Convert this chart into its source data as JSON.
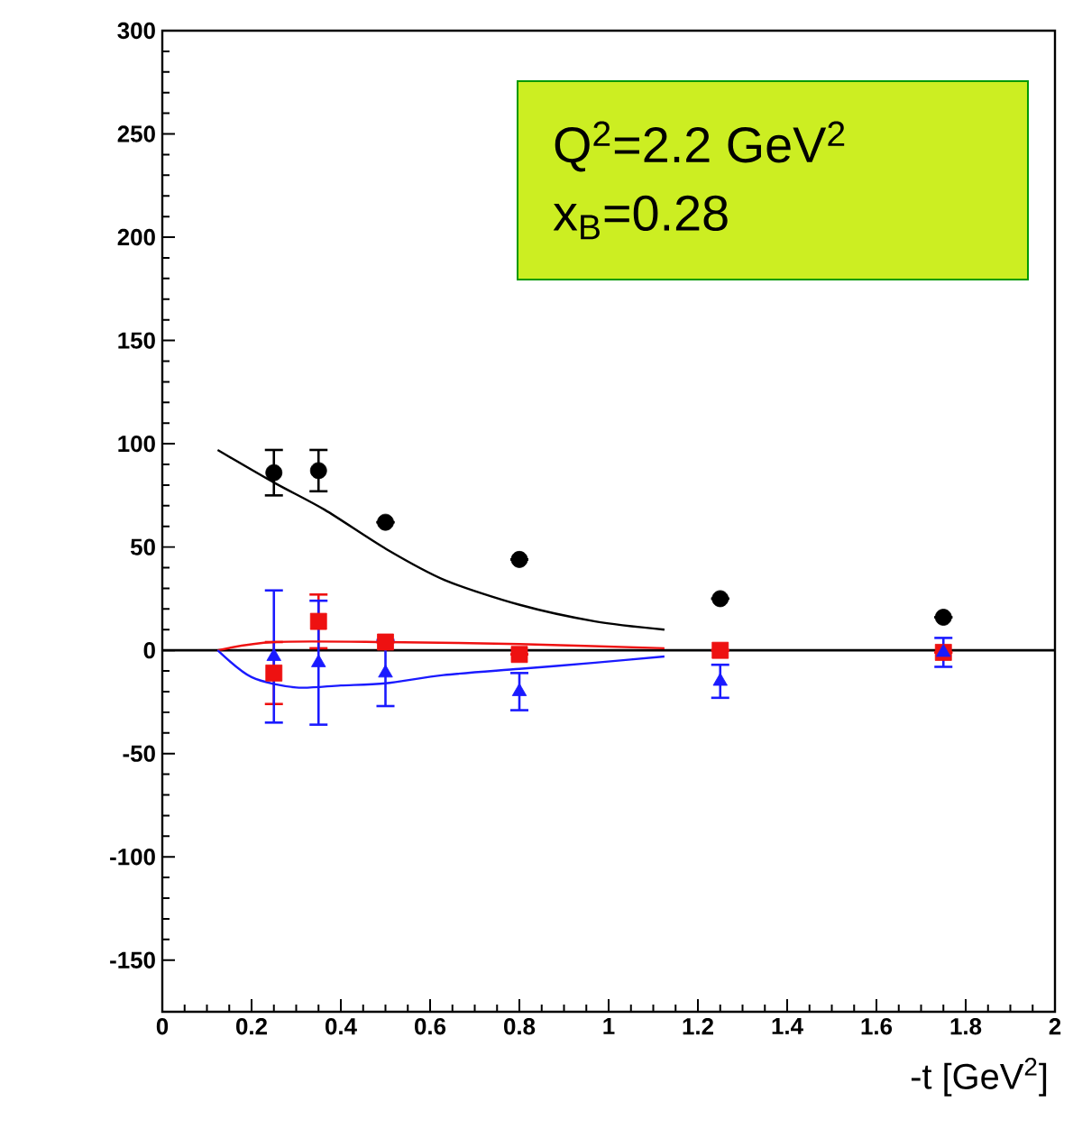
{
  "chart_data": {
    "type": "scatter",
    "xlabel": "-t [GeV$^{2}$]",
    "annotations": [
      "Q$^{2}$=2.2 GeV$^{2}$",
      "x$_{B}$=0.28"
    ],
    "xlim": [
      0,
      2
    ],
    "ylim": [
      -175,
      300
    ],
    "xticks": [
      0,
      0.2,
      0.4,
      0.6,
      0.8,
      1,
      1.2,
      1.4,
      1.6,
      1.8,
      2
    ],
    "yticks": [
      -150,
      -100,
      -50,
      0,
      50,
      100,
      150,
      200,
      250,
      300
    ],
    "ref_lines": [
      {
        "axis": "y",
        "value": 0,
        "color": "#000000"
      }
    ],
    "series": [
      {
        "marker": "circle",
        "color": "#000000",
        "x": [
          0.25,
          0.35,
          0.5,
          0.8,
          1.25,
          1.75
        ],
        "values": [
          86,
          87,
          62,
          44,
          25,
          16
        ],
        "errors": [
          11,
          10,
          null,
          null,
          null,
          null
        ]
      },
      {
        "marker": "square",
        "color": "#ee1111",
        "x": [
          0.25,
          0.35,
          0.5,
          0.8,
          1.25,
          1.75
        ],
        "values": [
          -11,
          14,
          4,
          -2,
          0,
          -1
        ],
        "errors": [
          15,
          13,
          null,
          null,
          null,
          null
        ]
      },
      {
        "marker": "triangle",
        "color": "#1a1aff",
        "x": [
          0.25,
          0.35,
          0.5,
          0.8,
          1.25,
          1.75
        ],
        "values": [
          -3,
          -6,
          -11,
          -20,
          -15,
          -1
        ],
        "errors": [
          32,
          30,
          16,
          9,
          8,
          7
        ]
      },
      {
        "type": "line",
        "color": "#000000",
        "x": [
          0.124,
          0.252,
          0.364,
          0.502,
          0.633,
          0.801,
          0.97,
          1.125
        ],
        "values": [
          97,
          81,
          68,
          49,
          34,
          22,
          14,
          10
        ]
      },
      {
        "type": "line",
        "color": "#ee1111",
        "x": [
          0.124,
          0.25,
          0.5,
          0.8,
          1.125
        ],
        "values": [
          0,
          4,
          4,
          3,
          1
        ]
      },
      {
        "type": "line",
        "color": "#1a1aff",
        "x": [
          0.124,
          0.2,
          0.3,
          0.4,
          0.5,
          0.63,
          0.8,
          0.97,
          1.125
        ],
        "values": [
          0,
          -13,
          -18,
          -17,
          -16,
          -12,
          -9,
          -6,
          -3
        ]
      }
    ]
  }
}
